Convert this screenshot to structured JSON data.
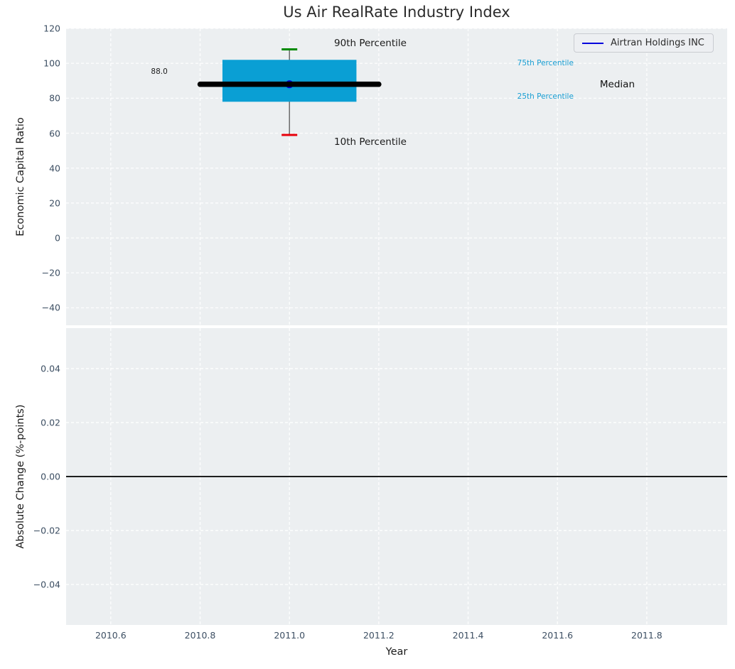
{
  "chart_data": [
    {
      "type": "boxplot",
      "title": "Us Air RealRate Industry Index",
      "ylabel": "Economic Capital Ratio",
      "xlim": [
        2010.5,
        2011.98
      ],
      "ylim": [
        -50,
        120
      ],
      "yticks": {
        "values": [
          120,
          100,
          80,
          60,
          40,
          20,
          0,
          -20,
          -40
        ],
        "labels": [
          "120",
          "100",
          "80",
          "60",
          "40",
          "20",
          "0",
          "−20",
          "−40"
        ]
      },
      "grid": "white-dashed",
      "background": "#eceff1",
      "legend": {
        "label": "Airtran Holdings INC",
        "line_color": "#0000dd",
        "position": "upper right"
      },
      "series": [
        {
          "name": "Airtran Holdings INC",
          "x": [
            2011.0
          ],
          "y": [
            88.0
          ],
          "color": "#0000dd"
        }
      ],
      "box": {
        "x": 2011.0,
        "p10": 59,
        "p25": 78,
        "median": 88.0,
        "p75": 102,
        "p90": 108,
        "box_half_width_years": 0.15,
        "median_half_width_years": 0.2,
        "colors": {
          "box": "#0a9fd4",
          "median": "#000000",
          "whisker": "#555555",
          "cap_top": "#008a00",
          "cap_bottom": "#e8000b",
          "company_marker": "#0000dd"
        }
      },
      "annotations": [
        {
          "text": "90th Percentile",
          "x": 2011.1,
          "y": 111.5,
          "color": "#1a1a1a",
          "font_size": 13.5
        },
        {
          "text": "10th Percentile",
          "x": 2011.1,
          "y": 55,
          "color": "#1a1a1a",
          "font_size": 13.5
        },
        {
          "text": "88.0",
          "x": 2010.69,
          "y": 95,
          "color": "#1a1a1a",
          "font_size": 10.5
        },
        {
          "text": "75th Percentile",
          "x": 2011.51,
          "y": 100,
          "color": "#189ed3",
          "font_size": 10.5
        },
        {
          "text": "25th Percentile",
          "x": 2011.51,
          "y": 81,
          "color": "#189ed3",
          "font_size": 10.5
        },
        {
          "text": "Median",
          "x": 2011.695,
          "y": 88,
          "color": "#111111",
          "font_size": 13.5
        }
      ]
    },
    {
      "type": "line",
      "ylabel": "Absolute Change (%-points)",
      "xlabel": "Year",
      "xlim": [
        2010.5,
        2011.98
      ],
      "ylim": [
        -0.055,
        0.055
      ],
      "xticks": {
        "values": [
          2010.6,
          2010.8,
          2011.0,
          2011.2,
          2011.4,
          2011.6,
          2011.8
        ],
        "labels": [
          "2010.6",
          "2010.8",
          "2011.0",
          "2011.2",
          "2011.4",
          "2011.6",
          "2011.8"
        ]
      },
      "yticks": {
        "values": [
          0.04,
          0.02,
          0,
          -0.02,
          -0.04
        ],
        "labels": [
          "0.04",
          "0.02",
          "0.00",
          "−0.02",
          "−0.04"
        ]
      },
      "grid": "white-dashed",
      "background": "#eceff1",
      "zero_line": {
        "y": 0.0,
        "color": "#000000"
      },
      "series": []
    }
  ]
}
